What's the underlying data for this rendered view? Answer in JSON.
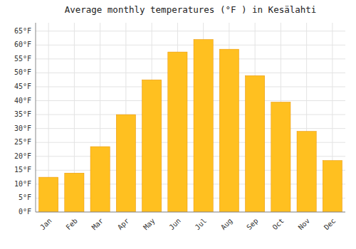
{
  "chart_data": {
    "type": "bar",
    "title": "Average monthly temperatures (°F ) in Kesälahti",
    "categories": [
      "Jan",
      "Feb",
      "Mar",
      "Apr",
      "May",
      "Jun",
      "Jul",
      "Aug",
      "Sep",
      "Oct",
      "Nov",
      "Dec"
    ],
    "values": [
      12.5,
      14.0,
      23.5,
      35.0,
      47.5,
      57.5,
      62.0,
      58.5,
      49.0,
      39.5,
      29.0,
      18.5
    ],
    "color": "#FFC020",
    "ylim": [
      0,
      68
    ],
    "yticks": [
      {
        "value": 0,
        "label": "0°F"
      },
      {
        "value": 5,
        "label": "5°F"
      },
      {
        "value": 10,
        "label": "10°F"
      },
      {
        "value": 15,
        "label": "15°F"
      },
      {
        "value": 20,
        "label": "20°F"
      },
      {
        "value": 25,
        "label": "25°F"
      },
      {
        "value": 30,
        "label": "30°F"
      },
      {
        "value": 35,
        "label": "35°F"
      },
      {
        "value": 40,
        "label": "40°F"
      },
      {
        "value": 45,
        "label": "45°F"
      },
      {
        "value": 50,
        "label": "50°F"
      },
      {
        "value": 55,
        "label": "55°F"
      },
      {
        "value": 60,
        "label": "60°F"
      },
      {
        "value": 65,
        "label": "65°F"
      }
    ],
    "grid": true
  }
}
